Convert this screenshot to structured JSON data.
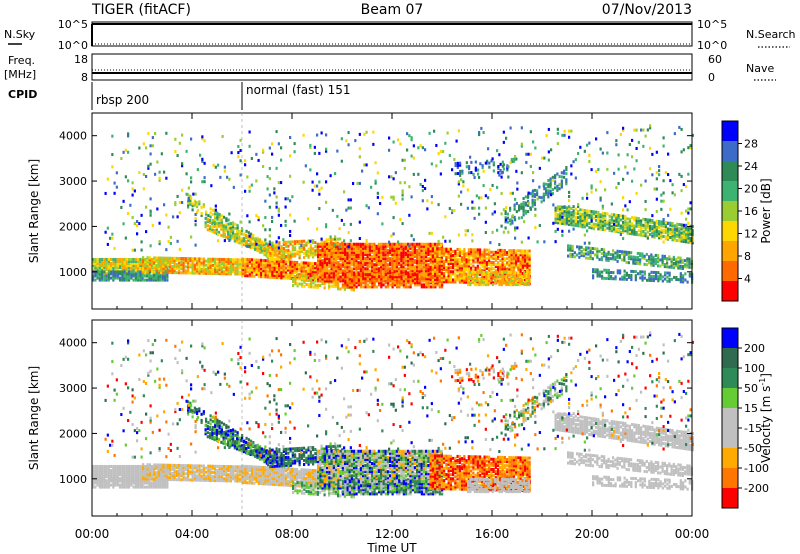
{
  "header": {
    "station": "TIGER (fitACF)",
    "beam": "Beam 07",
    "date": "07/Nov/2013"
  },
  "strips": {
    "nsky_label": "N.Sky",
    "nsearch_label": "N.Search",
    "freq_label_1": "Freq.",
    "freq_label_2": "[MHz]",
    "nave_label": "Nave",
    "cpid_label": "CPID",
    "nsky_ticks": [
      "10^5",
      "10^0"
    ],
    "nsearch_ticks": [
      "10^5",
      "10^0"
    ],
    "freq_ticks": [
      "18",
      "8"
    ],
    "nave_ticks": [
      "60",
      "0"
    ],
    "cpid_segments": [
      {
        "label": "rbsp 200",
        "start_hour": 0
      },
      {
        "label": "normal (fast) 151",
        "start_hour": 6
      }
    ]
  },
  "colors": {
    "power_scale": [
      "#0000ff",
      "#3c6cc8",
      "#2e8b57",
      "#3cb371",
      "#9acd32",
      "#ffd700",
      "#ffa500",
      "#ff6a00",
      "#ff0000"
    ],
    "velocity_scale": [
      "#0000ff",
      "#2e6b4f",
      "#2e8b57",
      "#66cc33",
      "#c0c0c0",
      "#c0c0c0",
      "#ffaa00",
      "#ff7700",
      "#ff0000"
    ]
  },
  "chart_data": [
    {
      "type": "heatmap",
      "panel": "power",
      "ylabel": "Slant Range [km]",
      "ylim": [
        180,
        4500
      ],
      "yticks": [
        "4000",
        "3000",
        "2000",
        "1000"
      ],
      "colorbar_label": "Power [dB]",
      "colorbar_ticks": [
        "28",
        "24",
        "20",
        "16",
        "12",
        "8",
        "4"
      ],
      "colorbar_range": [
        0,
        30
      ]
    },
    {
      "type": "heatmap",
      "panel": "velocity",
      "ylabel": "Slant Range [km]",
      "ylim": [
        180,
        4500
      ],
      "yticks": [
        "4000",
        "3000",
        "2000",
        "1000"
      ],
      "colorbar_label": "Velocity [m s",
      "colorbar_label_sup": "-1",
      "colorbar_label_end": "]",
      "colorbar_ticks": [
        "200",
        "100",
        "50",
        "15",
        "-15",
        "-50",
        "-100",
        "-200"
      ]
    }
  ],
  "xaxis": {
    "label": "Time UT",
    "ticks": [
      "00:00",
      "04:00",
      "08:00",
      "12:00",
      "16:00",
      "20:00",
      "00:00"
    ],
    "range_hours": [
      0,
      24
    ]
  }
}
